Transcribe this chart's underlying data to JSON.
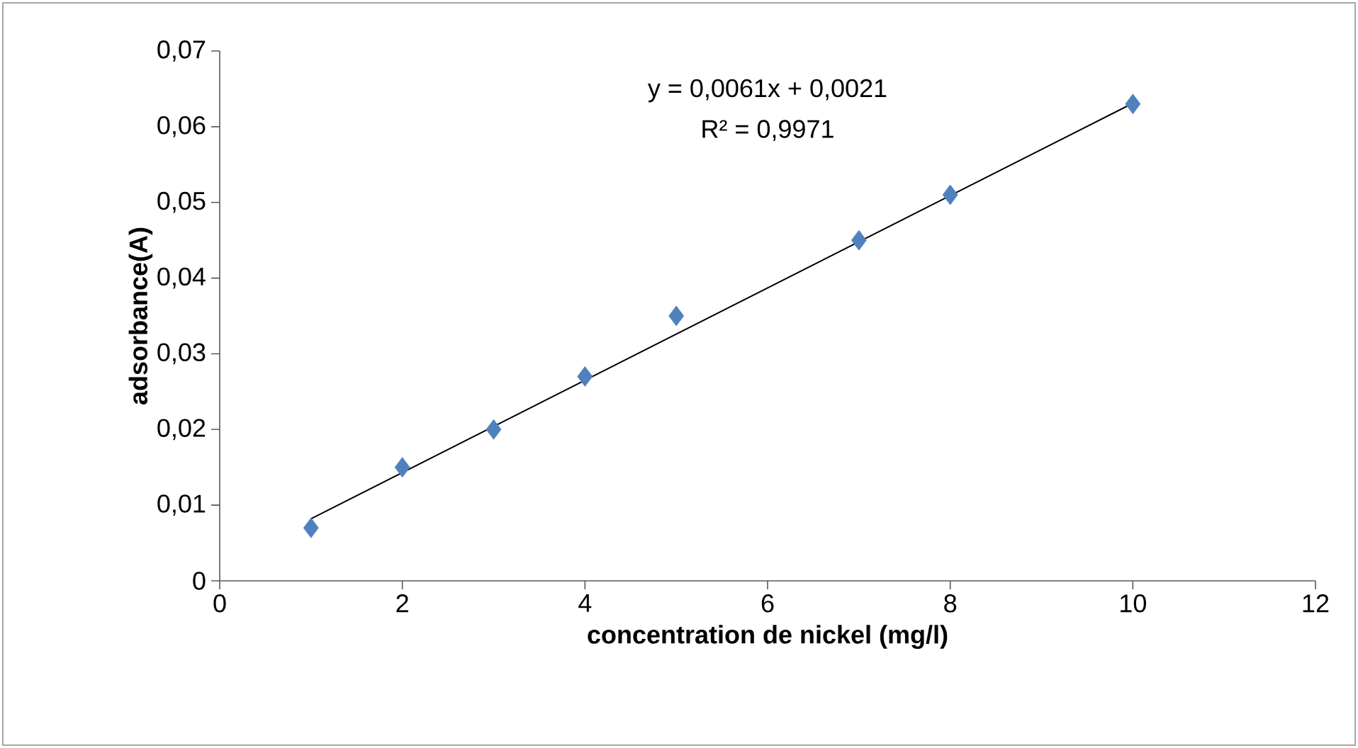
{
  "chart_data": {
    "type": "scatter",
    "xlabel": "concentration de nickel (mg/l)",
    "ylabel": "adsorbance(A)",
    "xlim": [
      0,
      12
    ],
    "xticks": [
      0,
      2,
      4,
      6,
      8,
      10,
      12
    ],
    "ylim": [
      0,
      0.07
    ],
    "yticks": [
      {
        "value": 0,
        "label": "0"
      },
      {
        "value": 0.01,
        "label": "0,01"
      },
      {
        "value": 0.02,
        "label": "0,02"
      },
      {
        "value": 0.03,
        "label": "0,03"
      },
      {
        "value": 0.04,
        "label": "0,04"
      },
      {
        "value": 0.05,
        "label": "0,05"
      },
      {
        "value": 0.06,
        "label": "0,06"
      },
      {
        "value": 0.07,
        "label": "0,07"
      }
    ],
    "grid": false,
    "series": [
      {
        "marker": "diamond",
        "color": "#4f81bd",
        "x": [
          1,
          2,
          3,
          4,
          5,
          7,
          8,
          10
        ],
        "values": [
          0.007,
          0.015,
          0.02,
          0.027,
          0.035,
          0.045,
          0.051,
          0.063
        ]
      },
      {
        "type": "line",
        "marker": "none",
        "color": "#000000",
        "x": [
          1,
          10
        ],
        "values": [
          0.0082,
          0.0631
        ]
      }
    ],
    "annotations": [
      "y = 0,0061x + 0,0021",
      "R² = 0,9971"
    ]
  }
}
